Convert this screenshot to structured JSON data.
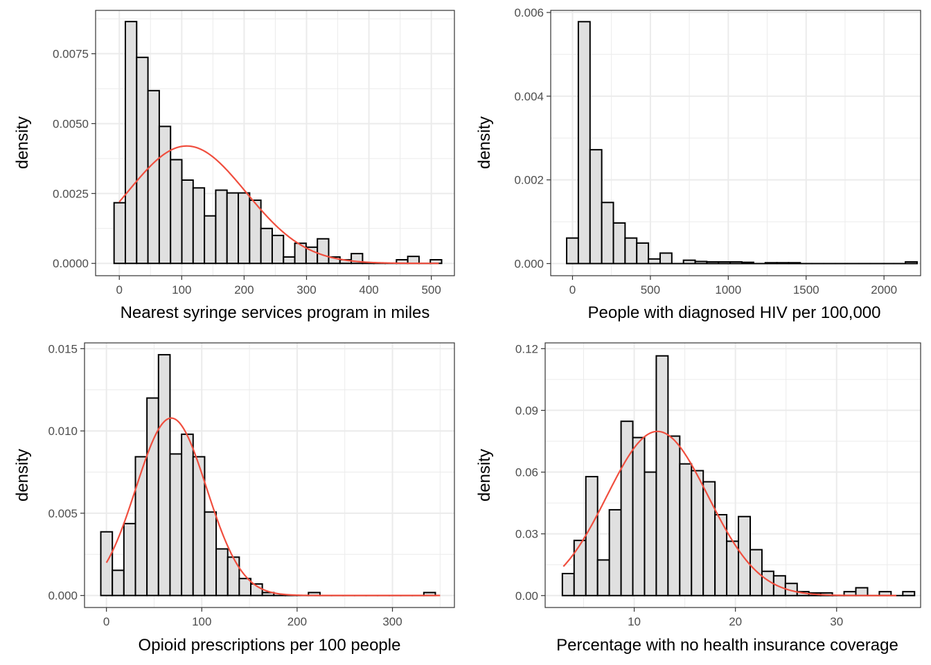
{
  "colors": {
    "bar_fill": "#e0e0e0",
    "bar_stroke": "#000000",
    "curve": "#f04e3e",
    "grid": "#ebebeb",
    "panel_border": "#333333"
  },
  "chart_data": [
    {
      "type": "bar",
      "xlabel": "Nearest syringe services program in miles",
      "ylabel": "density",
      "xlim": [
        -38,
        537
      ],
      "ylim": [
        -0.00044,
        0.00905
      ],
      "grid": true,
      "x_ticks": [
        0,
        100,
        200,
        300,
        400,
        500
      ],
      "x_tick_labels": [
        "0",
        "100",
        "200",
        "300",
        "400",
        "500"
      ],
      "y_ticks": [
        0,
        0.0025,
        0.005,
        0.0075
      ],
      "y_tick_labels": [
        "0.0000",
        "0.0025",
        "0.0050",
        "0.0075"
      ],
      "bins_start": -8.4,
      "bin_width": 18.1,
      "values": [
        0.00217,
        0.00865,
        0.00737,
        0.00618,
        0.0049,
        0.00371,
        0.00298,
        0.0027,
        0.0017,
        0.00262,
        0.00252,
        0.00252,
        0.00226,
        0.00125,
        0.001,
        0.00023,
        0.00072,
        0.00058,
        0.00088,
        0.00023,
        0.00013,
        0.00035,
        0.0,
        0.0,
        0.0,
        0.00013,
        0.00025,
        0.0,
        0.00013
      ],
      "normal_curve": {
        "mean": 108,
        "sd": 95,
        "x_range": [
          0,
          512
        ]
      }
    },
    {
      "type": "bar",
      "xlabel": "People with diagnosed HIV per 100,000",
      "ylabel": "density",
      "xlim": [
        -140,
        2235
      ],
      "ylim": [
        -0.00029,
        0.00605
      ],
      "grid": true,
      "x_ticks": [
        0,
        500,
        1000,
        1500,
        2000
      ],
      "x_tick_labels": [
        "0",
        "500",
        "1000",
        "1500",
        "2000"
      ],
      "y_ticks": [
        0,
        0.002,
        0.004,
        0.006
      ],
      "y_tick_labels": [
        "0.000",
        "0.002",
        "0.004",
        "0.006"
      ],
      "bins_start": -37.5,
      "bin_width": 75,
      "values": [
        0.00061,
        0.00578,
        0.00272,
        0.00146,
        0.00097,
        0.00061,
        0.00049,
        0.00011,
        0.00025,
        0.0,
        8e-05,
        5e-05,
        4e-05,
        4e-05,
        4e-05,
        3e-05,
        0.0,
        2e-05,
        2e-05,
        2e-05,
        0.0,
        0.0,
        0.0,
        0.0,
        0.0,
        0.0,
        0.0,
        0.0,
        0.0,
        4e-05
      ],
      "normal_curve": null
    },
    {
      "type": "bar",
      "xlabel": "Opioid prescriptions per 100 people",
      "ylabel": "density",
      "xlim": [
        -23,
        365
      ],
      "ylim": [
        -0.00073,
        0.01535
      ],
      "grid": true,
      "x_ticks": [
        0,
        100,
        200,
        300
      ],
      "x_tick_labels": [
        "0",
        "100",
        "200",
        "300"
      ],
      "y_ticks": [
        0,
        0.005,
        0.01,
        0.015
      ],
      "y_tick_labels": [
        "0.000",
        "0.005",
        "0.010",
        "0.015"
      ],
      "bins_start": -5.9,
      "bin_width": 12.1,
      "values": [
        0.00387,
        0.00153,
        0.00437,
        0.00843,
        0.012,
        0.01463,
        0.0086,
        0.0098,
        0.00843,
        0.00507,
        0.00283,
        0.00233,
        0.00103,
        0.0007,
        0.00018,
        0.0,
        0.0,
        0.0,
        0.00018,
        0.0,
        0.0,
        0.0,
        0.0,
        0.0,
        0.0,
        0.0,
        0.0,
        0.0,
        0.00018
      ],
      "normal_curve": {
        "mean": 68,
        "sd": 37,
        "x_range": [
          0,
          350
        ]
      }
    },
    {
      "type": "bar",
      "xlabel": "Percentage with no health insurance coverage",
      "ylabel": "density",
      "xlim": [
        1.2,
        38.3
      ],
      "ylim": [
        -0.0058,
        0.1228
      ],
      "grid": true,
      "x_ticks": [
        10,
        20,
        30
      ],
      "x_tick_labels": [
        "10",
        "20",
        "30"
      ],
      "y_ticks": [
        0,
        0.03,
        0.06,
        0.09,
        0.12
      ],
      "y_tick_labels": [
        "0.00",
        "0.03",
        "0.06",
        "0.09",
        "0.12"
      ],
      "bins_start": 2.9,
      "bin_width": 1.16,
      "values": [
        0.0107,
        0.0268,
        0.0578,
        0.0173,
        0.0417,
        0.0847,
        0.0768,
        0.06,
        0.1165,
        0.0775,
        0.064,
        0.0607,
        0.0553,
        0.0393,
        0.0264,
        0.0384,
        0.0223,
        0.0118,
        0.0096,
        0.0059,
        0.0019,
        0.0013,
        0.0013,
        0.0,
        0.0019,
        0.0038,
        0.0,
        0.0019,
        0.0,
        0.0019
      ],
      "normal_curve": {
        "mean": 12.3,
        "sd": 5.0,
        "x_range": [
          3,
          35.9
        ]
      }
    }
  ]
}
